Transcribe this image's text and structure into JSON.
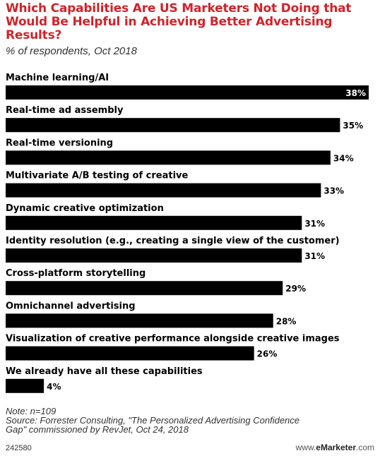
{
  "title": "Which Capabilities Are US Marketers Not Doing that Would Be Helpful in Achieving Better Advertising Results?",
  "subtitle": "% of respondents, Oct 2018",
  "chart_data": {
    "type": "bar",
    "orientation": "horizontal",
    "categories": [
      "Machine learning/AI",
      "Real-time ad assembly",
      "Real-time versioning",
      "Multivariate A/B testing of creative",
      "Dynamic creative optimization",
      "Identity resolution (e.g., creating a single view of the customer)",
      "Cross-platform storytelling",
      "Omnichannel advertising",
      "Visualization of creative performance alongside creative images",
      "We already have all these capabilities"
    ],
    "values": [
      38,
      35,
      34,
      33,
      31,
      31,
      29,
      28,
      26,
      4
    ],
    "value_labels": [
      "38%",
      "35%",
      "34%",
      "33%",
      "31%",
      "31%",
      "29%",
      "28%",
      "26%",
      "4%"
    ],
    "unit": "%",
    "xlim": [
      0,
      38
    ],
    "bar_color": "#000000",
    "grid": false
  },
  "footnote": {
    "note": "Note: n=109",
    "source_line1": "Source: Forrester Consulting, \"The Personalized Advertising Confidence",
    "source_line2": "Gap\" commissioned by RevJet, Oct 24, 2018"
  },
  "footer": {
    "chart_id": "242580",
    "brand_prefix": "www.",
    "brand_name": "eMarketer",
    "brand_suffix": ".com"
  }
}
